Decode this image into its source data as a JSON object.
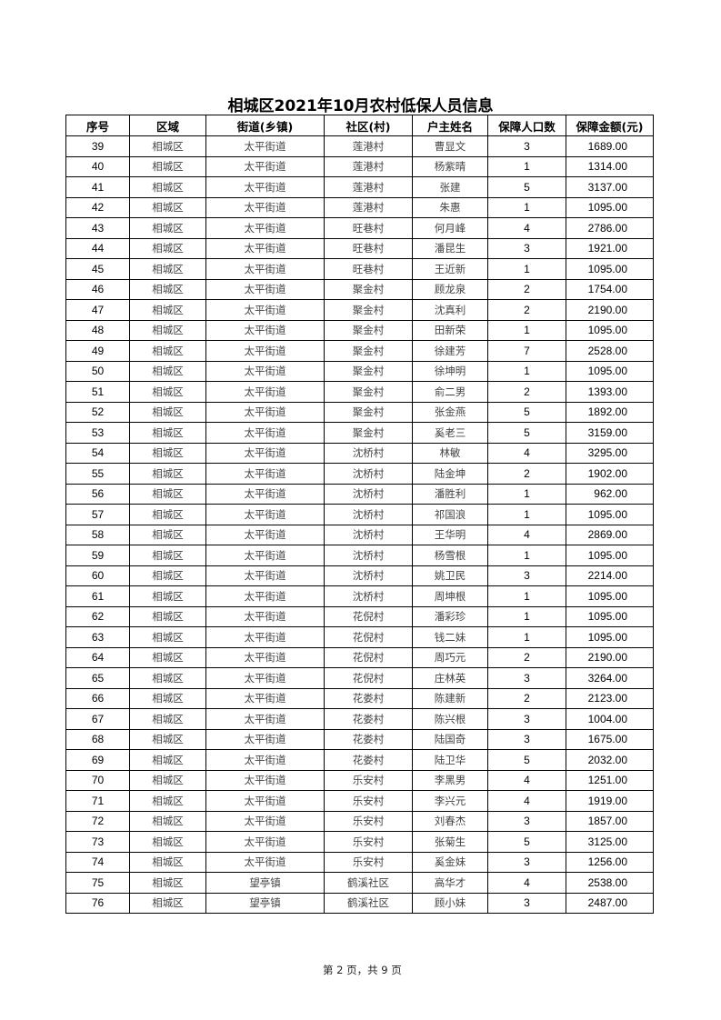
{
  "title": "相城区2021年10月农村低保人员信息",
  "table": {
    "headers": [
      "序号",
      "区域",
      "街道(乡镇)",
      "社区(村)",
      "户主姓名",
      "保障人口数",
      "保障金额(元)"
    ],
    "rows": [
      [
        "39",
        "相城区",
        "太平街道",
        "莲港村",
        "曹显文",
        "3",
        "1689.00"
      ],
      [
        "40",
        "相城区",
        "太平街道",
        "莲港村",
        "杨紫晴",
        "1",
        "1314.00"
      ],
      [
        "41",
        "相城区",
        "太平街道",
        "莲港村",
        "张建",
        "5",
        "3137.00"
      ],
      [
        "42",
        "相城区",
        "太平街道",
        "莲港村",
        "朱惠",
        "1",
        "1095.00"
      ],
      [
        "43",
        "相城区",
        "太平街道",
        "旺巷村",
        "何月峰",
        "4",
        "2786.00"
      ],
      [
        "44",
        "相城区",
        "太平街道",
        "旺巷村",
        "潘昆生",
        "3",
        "1921.00"
      ],
      [
        "45",
        "相城区",
        "太平街道",
        "旺巷村",
        "王近新",
        "1",
        "1095.00"
      ],
      [
        "46",
        "相城区",
        "太平街道",
        "聚金村",
        "顾龙泉",
        "2",
        "1754.00"
      ],
      [
        "47",
        "相城区",
        "太平街道",
        "聚金村",
        "沈真利",
        "2",
        "2190.00"
      ],
      [
        "48",
        "相城区",
        "太平街道",
        "聚金村",
        "田新荣",
        "1",
        "1095.00"
      ],
      [
        "49",
        "相城区",
        "太平街道",
        "聚金村",
        "徐建芳",
        "7",
        "2528.00"
      ],
      [
        "50",
        "相城区",
        "太平街道",
        "聚金村",
        "徐坤明",
        "1",
        "1095.00"
      ],
      [
        "51",
        "相城区",
        "太平街道",
        "聚金村",
        "俞二男",
        "2",
        "1393.00"
      ],
      [
        "52",
        "相城区",
        "太平街道",
        "聚金村",
        "张金燕",
        "5",
        "1892.00"
      ],
      [
        "53",
        "相城区",
        "太平街道",
        "聚金村",
        "奚老三",
        "5",
        "3159.00"
      ],
      [
        "54",
        "相城区",
        "太平街道",
        "沈桥村",
        "林敏",
        "4",
        "3295.00"
      ],
      [
        "55",
        "相城区",
        "太平街道",
        "沈桥村",
        "陆金坤",
        "2",
        "1902.00"
      ],
      [
        "56",
        "相城区",
        "太平街道",
        "沈桥村",
        "潘胜利",
        "1",
        "962.00"
      ],
      [
        "57",
        "相城区",
        "太平街道",
        "沈桥村",
        "祁国浪",
        "1",
        "1095.00"
      ],
      [
        "58",
        "相城区",
        "太平街道",
        "沈桥村",
        "王华明",
        "4",
        "2869.00"
      ],
      [
        "59",
        "相城区",
        "太平街道",
        "沈桥村",
        "杨雪根",
        "1",
        "1095.00"
      ],
      [
        "60",
        "相城区",
        "太平街道",
        "沈桥村",
        "姚卫民",
        "3",
        "2214.00"
      ],
      [
        "61",
        "相城区",
        "太平街道",
        "沈桥村",
        "周坤根",
        "1",
        "1095.00"
      ],
      [
        "62",
        "相城区",
        "太平街道",
        "花倪村",
        "潘彩珍",
        "1",
        "1095.00"
      ],
      [
        "63",
        "相城区",
        "太平街道",
        "花倪村",
        "钱二妹",
        "1",
        "1095.00"
      ],
      [
        "64",
        "相城区",
        "太平街道",
        "花倪村",
        "周巧元",
        "2",
        "2190.00"
      ],
      [
        "65",
        "相城区",
        "太平街道",
        "花倪村",
        "庄林英",
        "3",
        "3264.00"
      ],
      [
        "66",
        "相城区",
        "太平街道",
        "花娄村",
        "陈建新",
        "2",
        "2123.00"
      ],
      [
        "67",
        "相城区",
        "太平街道",
        "花娄村",
        "陈兴根",
        "3",
        "1004.00"
      ],
      [
        "68",
        "相城区",
        "太平街道",
        "花娄村",
        "陆国奇",
        "3",
        "1675.00"
      ],
      [
        "69",
        "相城区",
        "太平街道",
        "花娄村",
        "陆卫华",
        "5",
        "2032.00"
      ],
      [
        "70",
        "相城区",
        "太平街道",
        "乐安村",
        "李黑男",
        "4",
        "1251.00"
      ],
      [
        "71",
        "相城区",
        "太平街道",
        "乐安村",
        "李兴元",
        "4",
        "1919.00"
      ],
      [
        "72",
        "相城区",
        "太平街道",
        "乐安村",
        "刘春杰",
        "3",
        "1857.00"
      ],
      [
        "73",
        "相城区",
        "太平街道",
        "乐安村",
        "张菊生",
        "5",
        "3125.00"
      ],
      [
        "74",
        "相城区",
        "太平街道",
        "乐安村",
        "奚金妹",
        "3",
        "1256.00"
      ],
      [
        "75",
        "相城区",
        "望亭镇",
        "鹤溪社区",
        "高华才",
        "4",
        "2538.00"
      ],
      [
        "76",
        "相城区",
        "望亭镇",
        "鹤溪社区",
        "顾小妹",
        "3",
        "2487.00"
      ]
    ]
  },
  "footer": "第 2 页，共 9 页"
}
